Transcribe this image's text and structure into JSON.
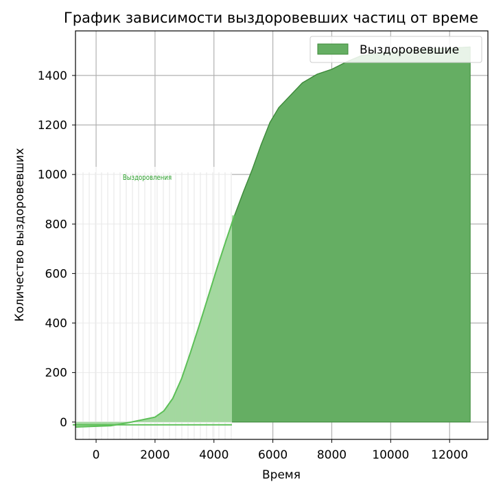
{
  "chart_data": {
    "type": "area",
    "title": "График зависимости выздоровевших частиц от време",
    "xlabel": "Время",
    "ylabel": "Количество выздоровевших",
    "xlim": [
      -700,
      13300
    ],
    "ylim": [
      -70,
      1580
    ],
    "grid": true,
    "legend_placement": "top-right",
    "x_ticks": [
      0,
      2000,
      4000,
      6000,
      8000,
      10000,
      12000
    ],
    "y_ticks": [
      0,
      200,
      400,
      600,
      800,
      1000,
      1200,
      1400
    ],
    "series": [
      {
        "name": "Выздоровевшие",
        "color": "#65ae63",
        "edge_color": "#3d8a3a",
        "x": [
          -700,
          500,
          1200,
          2000,
          2300,
          2600,
          2900,
          3200,
          3500,
          3800,
          4100,
          4400,
          4700,
          5000,
          5300,
          5600,
          5900,
          6200,
          6600,
          7000,
          7500,
          8000,
          8500,
          9000,
          10000,
          11000,
          12000,
          12700
        ],
        "y": [
          -20,
          -15,
          0,
          20,
          45,
          95,
          175,
          280,
          390,
          505,
          620,
          730,
          835,
          930,
          1020,
          1120,
          1210,
          1270,
          1320,
          1370,
          1405,
          1425,
          1455,
          1480,
          1495,
          1505,
          1510,
          1515
        ]
      }
    ],
    "inset": {
      "title": "Выздоровления",
      "color": "#8fd08a",
      "x": [
        -700,
        500,
        1200,
        2000,
        2300,
        2600,
        2900,
        3200,
        3500,
        3800,
        4100,
        4400,
        4700
      ],
      "y": [
        -20,
        -15,
        0,
        20,
        45,
        95,
        175,
        280,
        390,
        505,
        620,
        730,
        835
      ]
    }
  }
}
